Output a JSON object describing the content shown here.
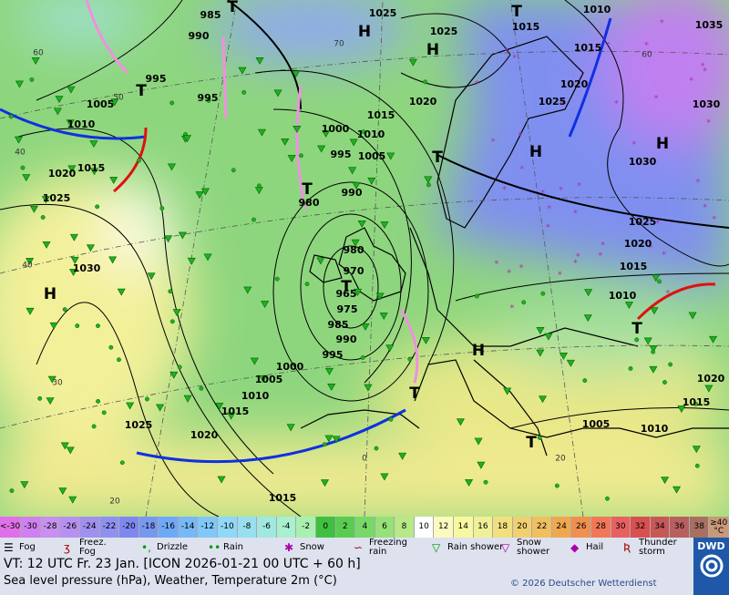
{
  "map": {
    "isobar_labels": [
      "985",
      "990",
      "995",
      "1005",
      "1010",
      "1020",
      "1015",
      "1025",
      "1030",
      "995",
      "1025",
      "1025",
      "1015",
      "1010",
      "1035",
      "1015",
      "1020",
      "1025",
      "1020",
      "1015",
      "1000",
      "1010",
      "995",
      "1005",
      "990",
      "980",
      "1030",
      "1030",
      "1025",
      "1020",
      "1015",
      "1010",
      "980",
      "970",
      "965",
      "975",
      "985",
      "990",
      "995",
      "1000",
      "1005",
      "1010",
      "1015",
      "1020",
      "1025",
      "1015",
      "1005",
      "1010",
      "1020",
      "1015"
    ],
    "pressure_centers": [
      "H",
      "H",
      "H",
      "H",
      "H",
      "H",
      "T",
      "T",
      "T",
      "T",
      "T",
      "T",
      "T",
      "T",
      "T"
    ],
    "grid_labels": [
      "70",
      "60",
      "50",
      "40",
      "40",
      "30",
      "20",
      "60",
      "0",
      "20"
    ]
  },
  "temperature_scale": {
    "labels": [
      "<-30",
      "-30",
      "-28",
      "-26",
      "-24",
      "-22",
      "-20",
      "-18",
      "-16",
      "-14",
      "-12",
      "-10",
      "-8",
      "-6",
      "-4",
      "-2",
      "0",
      "2",
      "4",
      "6",
      "8",
      "10",
      "12",
      "14",
      "16",
      "18",
      "20",
      "22",
      "24",
      "26",
      "28",
      "30",
      "32",
      "34",
      "36",
      "38",
      "≥40 °C"
    ],
    "colors": [
      "#e070e8",
      "#d080f0",
      "#c890f0",
      "#b890f0",
      "#a090f0",
      "#9090f0",
      "#7f88f0",
      "#7898f0",
      "#70a8f8",
      "#78b8f8",
      "#80c8f8",
      "#90d8f8",
      "#98e0f0",
      "#a0e8e0",
      "#a8f0d0",
      "#a8f0b0",
      "#40c040",
      "#58cc50",
      "#78d868",
      "#98e078",
      "#b8e888",
      "#ffffff",
      "#fbfbc0",
      "#f8f8a0",
      "#f0f098",
      "#f0e080",
      "#f0d070",
      "#f0c060",
      "#f0a850",
      "#f09050",
      "#f07858",
      "#e86060",
      "#d85050",
      "#c85858",
      "#b86060",
      "#a87060",
      "#c89878"
    ]
  },
  "weather_legend": [
    "Fog",
    "Freez. Fog",
    "Drizzle",
    "Rain",
    "Snow",
    "Freezing rain",
    "Rain shower",
    "Snow shower",
    "Hail",
    "Thunder storm"
  ],
  "footer": {
    "valid_time": "VT: 12 UTC Fr.  23 Jan. [ICON 2026-01-21  00 UTC + 60 h]",
    "description": "Sea level pressure (hPa), Weather, Temperature 2m (°C)",
    "copyright": "© 2026 Deutscher Wetterdienst",
    "logo": "DWD"
  }
}
